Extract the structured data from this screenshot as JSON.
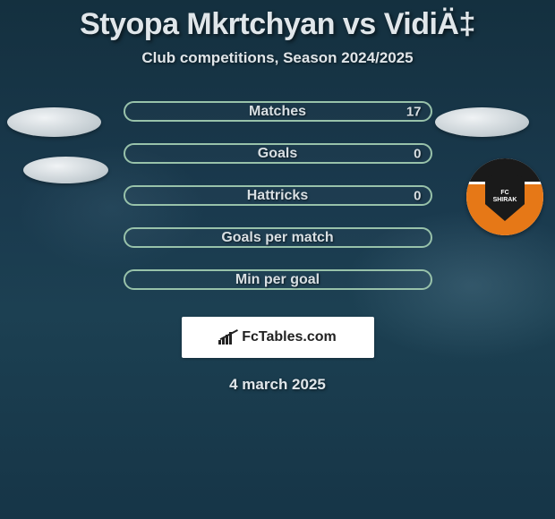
{
  "title": "Styopa Mkrtchyan vs VidiÄ‡",
  "subtitle": "Club competitions, Season 2024/2025",
  "stats": [
    {
      "label": "Matches",
      "right_value": "17"
    },
    {
      "label": "Goals",
      "right_value": "0"
    },
    {
      "label": "Hattricks",
      "right_value": "0"
    },
    {
      "label": "Goals per match",
      "right_value": ""
    },
    {
      "label": "Min per goal",
      "right_value": ""
    }
  ],
  "crest": {
    "top_text": "FC",
    "bottom_text": "SHIRAK",
    "top_color": "#1a1a1a",
    "bottom_color": "#e67817"
  },
  "branding": {
    "text": "FcTables.com"
  },
  "date": "4 march 2025",
  "style": {
    "pill_border_color": "#98c2aa",
    "pill_width": 345,
    "pill_height": 23,
    "pill_gap": 24,
    "text_color": "#e0e6ea",
    "background_primary": "#18364a"
  }
}
